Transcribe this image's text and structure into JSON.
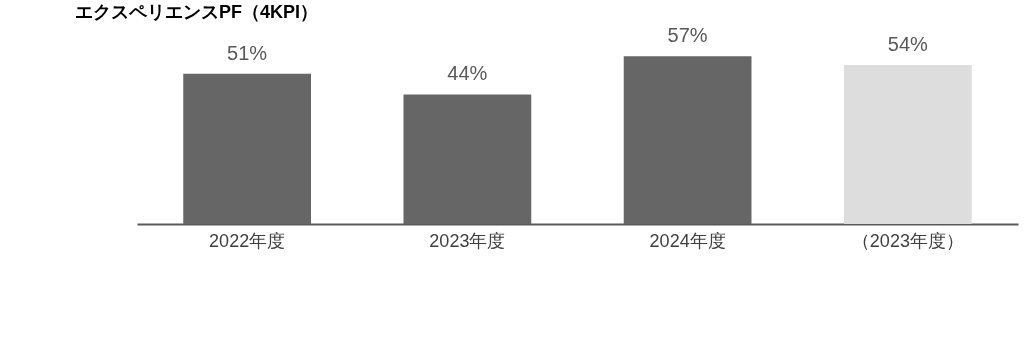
{
  "chart_data": {
    "type": "bar",
    "title": "エクスペリエンスPF（4KPI）",
    "categories": [
      "2022年度",
      "2023年度",
      "2024年度",
      "（2023年度）"
    ],
    "values": [
      51,
      44,
      57,
      54
    ],
    "colors": [
      "#666666",
      "#666666",
      "#666666",
      "#dddddd"
    ],
    "value_labels": [
      "51%",
      "44%",
      "57%",
      "54%"
    ]
  }
}
